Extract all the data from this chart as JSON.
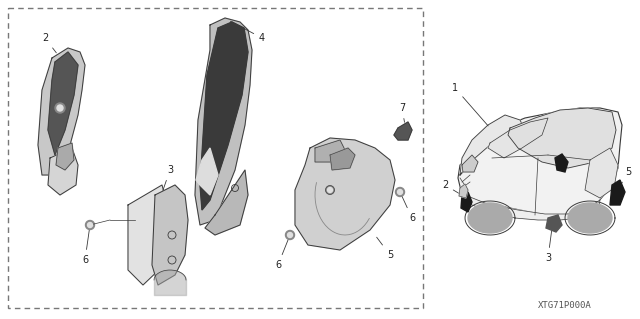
{
  "bg_color": "#ffffff",
  "diagram_code": "XTG71P000A",
  "line_color": "#3a3a3a",
  "dark_fill": "#1a1a1a",
  "light_fill": "#d8d8d8",
  "mid_fill": "#b0b0b0",
  "label_color": "#222222"
}
